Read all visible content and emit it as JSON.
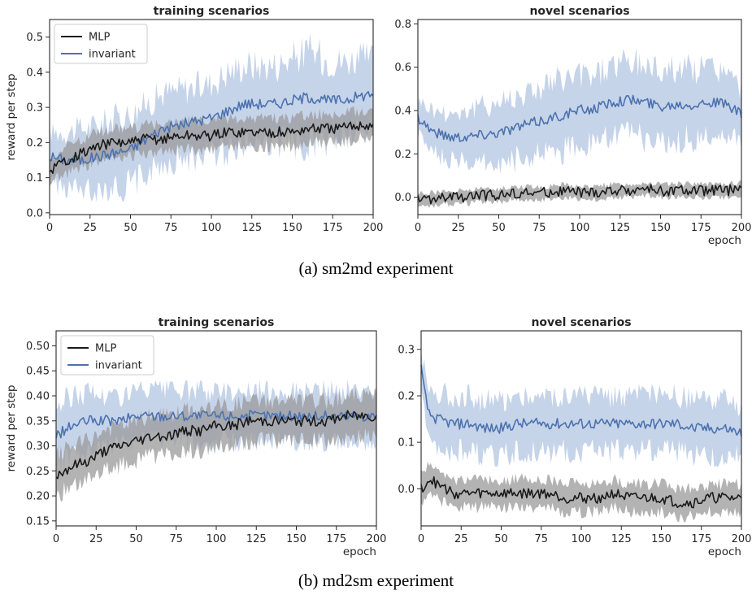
{
  "captions": [
    "(a) sm2md experiment",
    "(b) md2sm experiment"
  ],
  "colors": {
    "MLP": "#1a1a1a",
    "MLP_band": "#9a9a9a",
    "invariant": "#4c72b0",
    "invariant_band": "#a8bddd"
  },
  "chart_data": [
    {
      "type": "line",
      "title": "training scenarios",
      "xlabel": "",
      "ylabel": "reward per step",
      "xlim": [
        0,
        200
      ],
      "ylim": [
        -0.005,
        0.55
      ],
      "xticks": [
        0,
        25,
        50,
        75,
        100,
        125,
        150,
        175,
        200
      ],
      "yticks": [
        0.0,
        0.1,
        0.2,
        0.3,
        0.4,
        0.5
      ],
      "ytick_labels": [
        "0.0",
        "0.1",
        "0.2",
        "0.3",
        "0.4",
        "0.5"
      ],
      "legend": "top-left",
      "series": [
        {
          "name": "MLP",
          "x": [
            0,
            10,
            20,
            30,
            40,
            50,
            60,
            70,
            80,
            90,
            100,
            110,
            120,
            130,
            140,
            150,
            160,
            170,
            180,
            190,
            200
          ],
          "values": [
            0.12,
            0.15,
            0.17,
            0.19,
            0.2,
            0.2,
            0.21,
            0.21,
            0.22,
            0.22,
            0.22,
            0.23,
            0.23,
            0.23,
            0.23,
            0.23,
            0.24,
            0.24,
            0.24,
            0.25,
            0.25
          ],
          "band": [
            0.03,
            0.04,
            0.04,
            0.04,
            0.04,
            0.04,
            0.04,
            0.04,
            0.04,
            0.04,
            0.04,
            0.04,
            0.04,
            0.04,
            0.04,
            0.04,
            0.04,
            0.04,
            0.04,
            0.04,
            0.04
          ]
        },
        {
          "name": "invariant",
          "x": [
            0,
            10,
            20,
            30,
            40,
            50,
            60,
            70,
            80,
            90,
            100,
            110,
            120,
            130,
            140,
            150,
            160,
            170,
            180,
            190,
            200
          ],
          "values": [
            0.16,
            0.15,
            0.15,
            0.16,
            0.17,
            0.18,
            0.21,
            0.24,
            0.25,
            0.26,
            0.27,
            0.29,
            0.31,
            0.31,
            0.31,
            0.32,
            0.33,
            0.32,
            0.32,
            0.33,
            0.34
          ],
          "band": [
            0.07,
            0.08,
            0.09,
            0.09,
            0.1,
            0.1,
            0.1,
            0.1,
            0.1,
            0.1,
            0.1,
            0.11,
            0.11,
            0.11,
            0.11,
            0.12,
            0.13,
            0.12,
            0.11,
            0.11,
            0.1
          ]
        }
      ]
    },
    {
      "type": "line",
      "title": "novel scenarios",
      "xlabel": "epoch",
      "ylabel": "",
      "xlim": [
        0,
        200
      ],
      "ylim": [
        -0.08,
        0.82
      ],
      "xticks": [
        0,
        25,
        50,
        75,
        100,
        125,
        150,
        175,
        200
      ],
      "yticks": [
        0.0,
        0.2,
        0.4,
        0.6,
        0.8
      ],
      "ytick_labels": [
        "0.0",
        "0.2",
        "0.4",
        "0.6",
        "0.8"
      ],
      "legend": "none",
      "series": [
        {
          "name": "MLP",
          "x": [
            0,
            10,
            20,
            30,
            40,
            50,
            60,
            70,
            80,
            90,
            100,
            110,
            120,
            130,
            140,
            150,
            160,
            170,
            180,
            190,
            200
          ],
          "values": [
            -0.01,
            -0.01,
            0.0,
            0.0,
            0.01,
            0.01,
            0.02,
            0.02,
            0.02,
            0.03,
            0.02,
            0.02,
            0.03,
            0.03,
            0.04,
            0.03,
            0.03,
            0.03,
            0.03,
            0.03,
            0.04
          ],
          "band": [
            0.03,
            0.03,
            0.03,
            0.03,
            0.03,
            0.03,
            0.03,
            0.03,
            0.03,
            0.03,
            0.03,
            0.03,
            0.03,
            0.03,
            0.03,
            0.03,
            0.03,
            0.03,
            0.03,
            0.03,
            0.03
          ]
        },
        {
          "name": "invariant",
          "x": [
            0,
            10,
            20,
            30,
            40,
            50,
            60,
            70,
            80,
            90,
            100,
            110,
            120,
            130,
            140,
            150,
            160,
            170,
            180,
            190,
            200
          ],
          "values": [
            0.37,
            0.3,
            0.28,
            0.28,
            0.29,
            0.3,
            0.32,
            0.34,
            0.36,
            0.38,
            0.4,
            0.41,
            0.44,
            0.45,
            0.44,
            0.42,
            0.43,
            0.43,
            0.44,
            0.43,
            0.38
          ],
          "band": [
            0.08,
            0.1,
            0.11,
            0.12,
            0.13,
            0.14,
            0.15,
            0.15,
            0.16,
            0.16,
            0.16,
            0.16,
            0.17,
            0.17,
            0.17,
            0.17,
            0.17,
            0.16,
            0.16,
            0.15,
            0.12
          ]
        }
      ]
    },
    {
      "type": "line",
      "title": "training scenarios",
      "xlabel": "epoch",
      "ylabel": "reward per step",
      "xlim": [
        0,
        200
      ],
      "ylim": [
        0.14,
        0.53
      ],
      "xticks": [
        0,
        25,
        50,
        75,
        100,
        125,
        150,
        175,
        200
      ],
      "yticks": [
        0.15,
        0.2,
        0.25,
        0.3,
        0.35,
        0.4,
        0.45,
        0.5
      ],
      "ytick_labels": [
        "0.15",
        "0.20",
        "0.25",
        "0.30",
        "0.35",
        "0.40",
        "0.45",
        "0.50"
      ],
      "legend": "top-left",
      "series": [
        {
          "name": "MLP",
          "x": [
            0,
            10,
            20,
            30,
            40,
            50,
            60,
            70,
            80,
            90,
            100,
            110,
            120,
            130,
            140,
            150,
            160,
            170,
            180,
            190,
            200
          ],
          "values": [
            0.24,
            0.26,
            0.27,
            0.29,
            0.3,
            0.31,
            0.32,
            0.32,
            0.33,
            0.33,
            0.34,
            0.34,
            0.35,
            0.35,
            0.35,
            0.35,
            0.35,
            0.35,
            0.36,
            0.36,
            0.36
          ],
          "band": [
            0.04,
            0.04,
            0.04,
            0.04,
            0.04,
            0.04,
            0.04,
            0.04,
            0.04,
            0.04,
            0.04,
            0.04,
            0.04,
            0.04,
            0.04,
            0.04,
            0.04,
            0.04,
            0.04,
            0.04,
            0.04
          ]
        },
        {
          "name": "invariant",
          "x": [
            0,
            10,
            20,
            30,
            40,
            50,
            60,
            70,
            80,
            90,
            100,
            110,
            120,
            130,
            140,
            150,
            160,
            170,
            180,
            190,
            200
          ],
          "values": [
            0.32,
            0.34,
            0.35,
            0.35,
            0.35,
            0.36,
            0.36,
            0.36,
            0.36,
            0.36,
            0.36,
            0.36,
            0.36,
            0.36,
            0.36,
            0.36,
            0.36,
            0.36,
            0.36,
            0.36,
            0.36
          ],
          "band": [
            0.06,
            0.06,
            0.06,
            0.05,
            0.05,
            0.05,
            0.05,
            0.05,
            0.05,
            0.05,
            0.05,
            0.05,
            0.05,
            0.05,
            0.05,
            0.05,
            0.05,
            0.05,
            0.05,
            0.05,
            0.05
          ]
        }
      ]
    },
    {
      "type": "line",
      "title": "novel scenarios",
      "xlabel": "epoch",
      "ylabel": "",
      "xlim": [
        0,
        200
      ],
      "ylim": [
        -0.08,
        0.34
      ],
      "xticks": [
        0,
        25,
        50,
        75,
        100,
        125,
        150,
        175,
        200
      ],
      "yticks": [
        0.0,
        0.1,
        0.2,
        0.3
      ],
      "ytick_labels": [
        "0.0",
        "0.1",
        "0.2",
        "0.3"
      ],
      "legend": "none",
      "series": [
        {
          "name": "MLP",
          "x": [
            0,
            5,
            10,
            20,
            30,
            40,
            50,
            60,
            70,
            80,
            90,
            100,
            110,
            120,
            130,
            140,
            150,
            160,
            170,
            180,
            190,
            200
          ],
          "values": [
            0.0,
            0.02,
            0.01,
            -0.01,
            -0.01,
            -0.01,
            -0.01,
            -0.01,
            -0.01,
            -0.01,
            -0.02,
            -0.02,
            -0.02,
            -0.01,
            -0.02,
            -0.02,
            -0.02,
            -0.03,
            -0.03,
            -0.02,
            -0.02,
            -0.02
          ],
          "band": [
            0.03,
            0.03,
            0.03,
            0.03,
            0.03,
            0.03,
            0.03,
            0.03,
            0.03,
            0.03,
            0.03,
            0.03,
            0.03,
            0.03,
            0.03,
            0.03,
            0.03,
            0.03,
            0.03,
            0.03,
            0.03,
            0.03
          ]
        },
        {
          "name": "invariant",
          "x": [
            0,
            2,
            5,
            10,
            20,
            30,
            40,
            50,
            60,
            70,
            80,
            90,
            100,
            110,
            120,
            130,
            140,
            150,
            160,
            170,
            180,
            190,
            200
          ],
          "values": [
            0.26,
            0.21,
            0.16,
            0.15,
            0.14,
            0.14,
            0.13,
            0.13,
            0.14,
            0.14,
            0.14,
            0.14,
            0.14,
            0.14,
            0.14,
            0.14,
            0.14,
            0.14,
            0.14,
            0.13,
            0.13,
            0.13,
            0.12
          ],
          "band": [
            0.04,
            0.05,
            0.05,
            0.06,
            0.06,
            0.06,
            0.06,
            0.06,
            0.06,
            0.06,
            0.06,
            0.06,
            0.06,
            0.06,
            0.06,
            0.06,
            0.06,
            0.06,
            0.06,
            0.06,
            0.06,
            0.06,
            0.05
          ]
        }
      ]
    }
  ]
}
